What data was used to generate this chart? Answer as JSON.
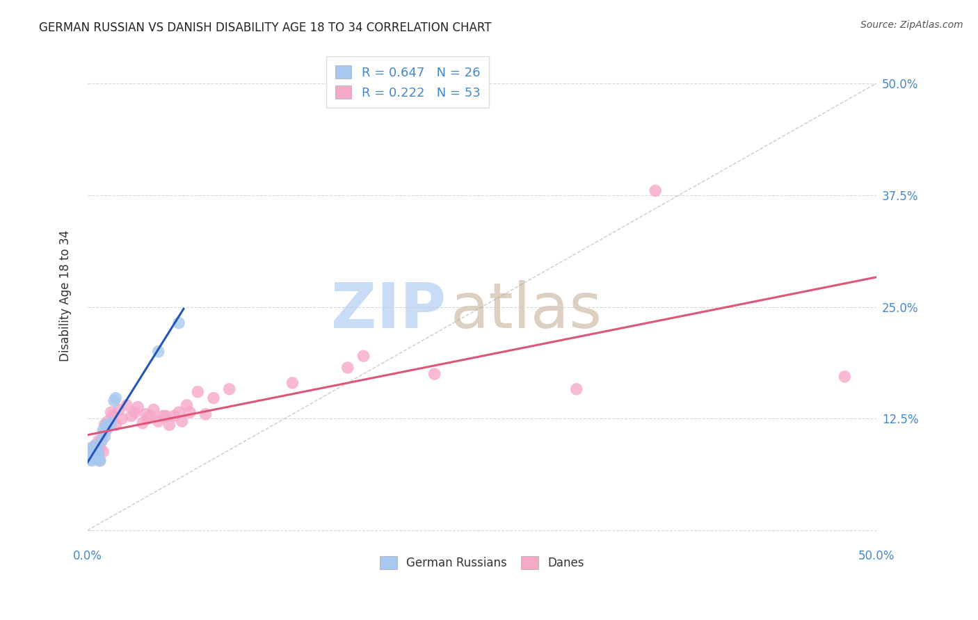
{
  "title": "GERMAN RUSSIAN VS DANISH DISABILITY AGE 18 TO 34 CORRELATION CHART",
  "source": "Source: ZipAtlas.com",
  "ylabel": "Disability Age 18 to 34",
  "xlim": [
    0.0,
    0.5
  ],
  "ylim": [
    -0.015,
    0.54
  ],
  "xticks": [
    0.0,
    0.05,
    0.1,
    0.15,
    0.2,
    0.25,
    0.3,
    0.35,
    0.4,
    0.45,
    0.5
  ],
  "xtick_labeled": [
    0.0,
    0.5
  ],
  "yticks": [
    0.0,
    0.125,
    0.25,
    0.375,
    0.5
  ],
  "yticklabels_right": [
    "",
    "12.5%",
    "25.0%",
    "37.5%",
    "50.0%"
  ],
  "R_german": "0.647",
  "N_german": "26",
  "R_danish": "0.222",
  "N_danish": "53",
  "blue_scatter_color": "#a8c8f0",
  "pink_scatter_color": "#f5a8c8",
  "blue_line_color": "#2255bb",
  "pink_line_color": "#dd5577",
  "grid_color": "#cccccc",
  "tick_color": "#4488cc",
  "watermark_zip_color": "#c8dcf5",
  "watermark_atlas_color": "#ddd0c0",
  "german_russian_x": [
    0.001,
    0.002,
    0.002,
    0.003,
    0.003,
    0.003,
    0.004,
    0.004,
    0.005,
    0.005,
    0.005,
    0.006,
    0.006,
    0.007,
    0.007,
    0.008,
    0.009,
    0.01,
    0.011,
    0.012,
    0.013,
    0.015,
    0.017,
    0.018,
    0.045,
    0.058
  ],
  "german_russian_y": [
    0.088,
    0.079,
    0.085,
    0.092,
    0.078,
    0.082,
    0.086,
    0.09,
    0.095,
    0.08,
    0.088,
    0.09,
    0.083,
    0.08,
    0.087,
    0.078,
    0.1,
    0.112,
    0.105,
    0.118,
    0.115,
    0.12,
    0.145,
    0.148,
    0.2,
    0.232
  ],
  "danish_x": [
    0.002,
    0.002,
    0.003,
    0.004,
    0.004,
    0.005,
    0.005,
    0.006,
    0.006,
    0.007,
    0.007,
    0.008,
    0.008,
    0.009,
    0.01,
    0.01,
    0.011,
    0.012,
    0.013,
    0.015,
    0.016,
    0.018,
    0.02,
    0.022,
    0.025,
    0.028,
    0.03,
    0.032,
    0.035,
    0.037,
    0.038,
    0.04,
    0.042,
    0.045,
    0.048,
    0.05,
    0.052,
    0.055,
    0.058,
    0.06,
    0.063,
    0.065,
    0.07,
    0.075,
    0.08,
    0.09,
    0.13,
    0.165,
    0.175,
    0.22,
    0.31,
    0.36,
    0.48
  ],
  "danish_y": [
    0.092,
    0.085,
    0.088,
    0.09,
    0.08,
    0.095,
    0.082,
    0.088,
    0.093,
    0.085,
    0.1,
    0.092,
    0.078,
    0.1,
    0.088,
    0.108,
    0.118,
    0.112,
    0.122,
    0.132,
    0.128,
    0.118,
    0.135,
    0.125,
    0.14,
    0.128,
    0.132,
    0.138,
    0.12,
    0.13,
    0.125,
    0.128,
    0.135,
    0.122,
    0.128,
    0.128,
    0.118,
    0.128,
    0.132,
    0.122,
    0.14,
    0.132,
    0.155,
    0.13,
    0.148,
    0.158,
    0.165,
    0.182,
    0.195,
    0.175,
    0.158,
    0.38,
    0.172
  ]
}
